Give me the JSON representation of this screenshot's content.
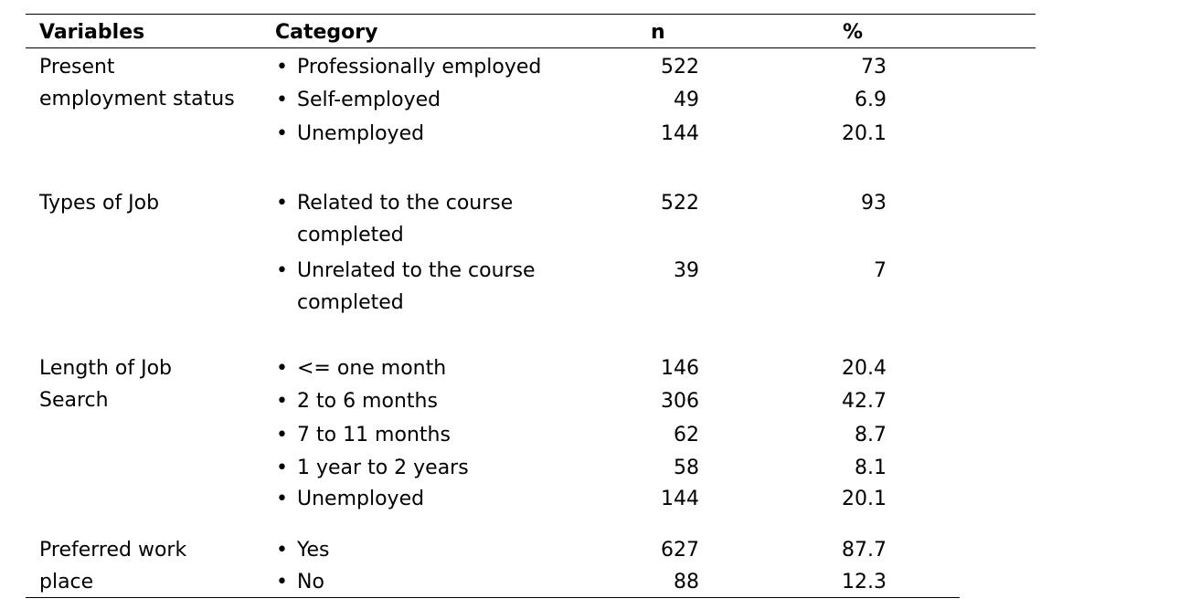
{
  "headers": {
    "variables": "Variables",
    "category": "Category",
    "n": "n",
    "percent": "%"
  },
  "bullet_glyph": "•",
  "rows": [
    {
      "variable_lines": [
        "Present",
        "employment status"
      ],
      "cat": [
        "Professionally  employed"
      ],
      "n": "522",
      "pct": "73"
    },
    {
      "variable_lines": [],
      "cat": [
        "Self-employed"
      ],
      "n": "49",
      "pct": "6.9"
    },
    {
      "variable_lines": [],
      "cat": [
        "Unemployed"
      ],
      "n": "144",
      "pct": "20.1"
    },
    {
      "variable_lines": [
        "Types of Job"
      ],
      "cat": [
        "Related to the course",
        "completed"
      ],
      "n": "522",
      "pct": "93"
    },
    {
      "variable_lines": [],
      "cat": [
        "Unrelated to the course",
        "completed"
      ],
      "n": "39",
      "pct": "7"
    },
    {
      "variable_lines": [
        "Length of Job",
        "Search"
      ],
      "cat": [
        "<=  one month"
      ],
      "n": "146",
      "pct": "20.4"
    },
    {
      "variable_lines": [],
      "cat": [
        "2 to 6 months"
      ],
      "n": "306",
      "pct": "42.7"
    },
    {
      "variable_lines": [],
      "cat": [
        "7 to 11 months"
      ],
      "n": "62",
      "pct": "8.7"
    },
    {
      "variable_lines": [],
      "cat": [
        "1 year to 2 years"
      ],
      "n": "58",
      "pct": "8.1"
    },
    {
      "variable_lines": [],
      "cat": [
        "Unemployed"
      ],
      "n": "144",
      "pct": "20.1"
    },
    {
      "variable_lines": [
        "Preferred work",
        "place"
      ],
      "cat": [
        "Yes"
      ],
      "n": "627",
      "pct": "87.7"
    },
    {
      "variable_lines": [],
      "cat": [
        "No"
      ],
      "n": "88",
      "pct": "12.3"
    }
  ]
}
